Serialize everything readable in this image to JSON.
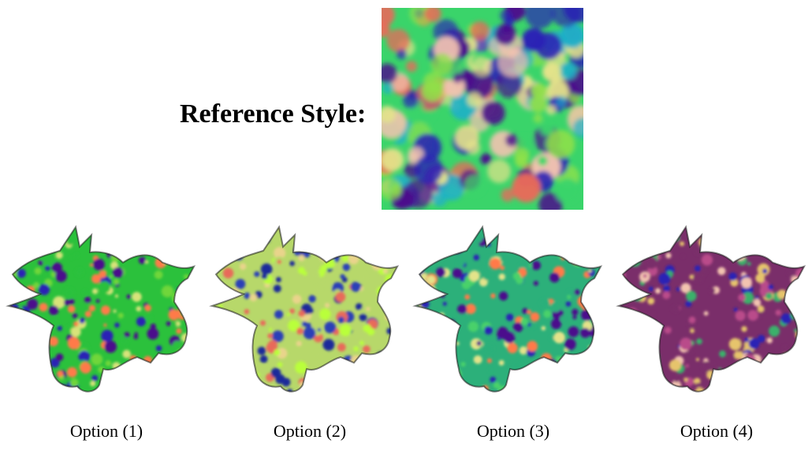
{
  "reference": {
    "label": "Reference Style:",
    "palette": [
      "#4b0f8c",
      "#2a21b5",
      "#1fb0c8",
      "#3ad46a",
      "#8fe04a",
      "#e3e38a",
      "#e86a5a",
      "#f2c3b0"
    ]
  },
  "options": [
    {
      "caption": "Option (1)",
      "palette": [
        "#2bc13c",
        "#6fd63a",
        "#d7e37a",
        "#ff7a4a",
        "#4b0f8c",
        "#2a21b5"
      ]
    },
    {
      "caption": "Option (2)",
      "palette": [
        "#b7d86a",
        "#e9d48b",
        "#2c3fb7",
        "#1e2a9a",
        "#b9ff3a",
        "#e86a5a"
      ]
    },
    {
      "caption": "Option (3)",
      "palette": [
        "#2cb07a",
        "#48d16b",
        "#2a21b5",
        "#4b0f8c",
        "#ff7a4a",
        "#e3e38a"
      ]
    },
    {
      "caption": "Option (4)",
      "palette": [
        "#7a2e6a",
        "#b94c8a",
        "#e6c46c",
        "#3bb06b",
        "#2a21b5",
        "#f2c3b0"
      ]
    }
  ]
}
